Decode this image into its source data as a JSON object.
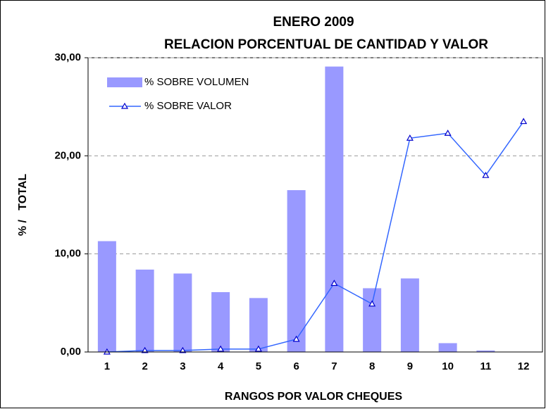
{
  "chart_data": {
    "type": "bar_line",
    "title": "ENERO 2009",
    "subtitle": "RELACION PORCENTUAL DE CANTIDAD Y VALOR",
    "x_label": "RANGOS POR VALOR CHEQUES",
    "y_label": "% /   TOTAL",
    "categories": [
      "1",
      "2",
      "3",
      "4",
      "5",
      "6",
      "7",
      "8",
      "9",
      "10",
      "11",
      "12"
    ],
    "series": [
      {
        "name": "% SOBRE VOLUMEN",
        "type": "bar",
        "color": "#9999ff",
        "values": [
          11.3,
          8.4,
          8.0,
          6.1,
          5.5,
          16.5,
          29.1,
          6.5,
          7.5,
          0.9,
          0.15,
          0
        ]
      },
      {
        "name": "% SOBRE VALOR",
        "type": "line",
        "color": "#3366ff",
        "values": [
          0.0,
          0.15,
          0.15,
          0.3,
          0.3,
          1.3,
          7.0,
          4.9,
          21.8,
          22.3,
          18.0,
          23.5
        ]
      }
    ],
    "ylim": [
      0,
      30
    ],
    "yticks": [
      {
        "value": 0,
        "label": "0,00"
      },
      {
        "value": 10,
        "label": "10,00"
      },
      {
        "value": 20,
        "label": "20,00"
      },
      {
        "value": 30,
        "label": "30,00"
      }
    ],
    "grid": true,
    "legend": "upper left"
  }
}
